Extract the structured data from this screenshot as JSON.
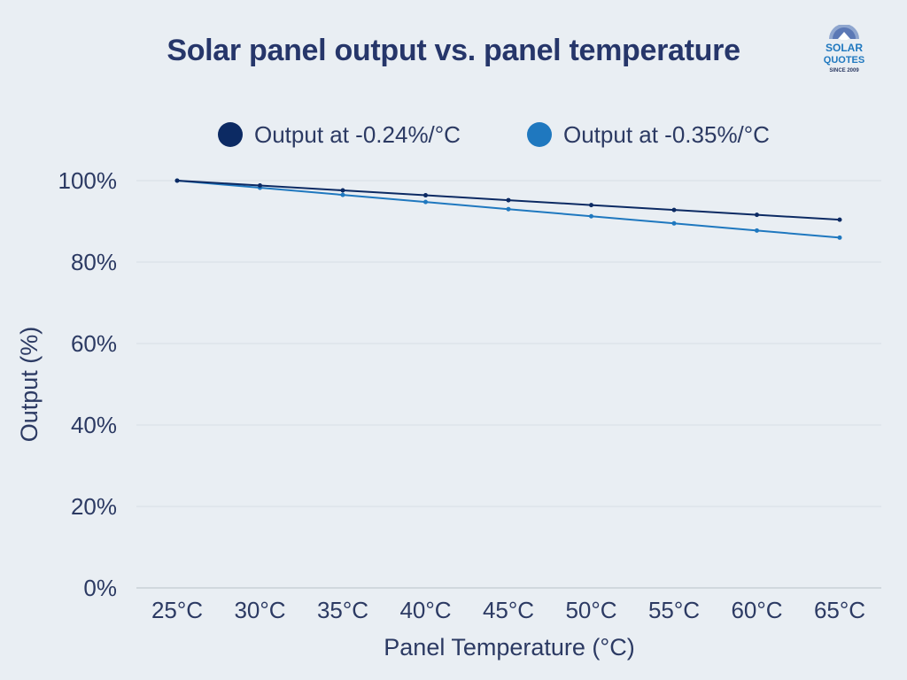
{
  "chart_data": {
    "type": "line",
    "title": "Solar panel output vs. panel temperature",
    "xlabel": "Panel Temperature (°C)",
    "ylabel": "Output (%)",
    "categories": [
      "25°C",
      "30°C",
      "35°C",
      "40°C",
      "45°C",
      "50°C",
      "55°C",
      "60°C",
      "65°C"
    ],
    "ylim": [
      0,
      100
    ],
    "yticks": [
      0,
      20,
      40,
      60,
      80,
      100
    ],
    "ytick_labels": [
      "0%",
      "20%",
      "40%",
      "60%",
      "80%",
      "100%"
    ],
    "grid": true,
    "legend_position": "top",
    "series": [
      {
        "name": "Output at -0.24%/°C",
        "color": "#0c2a63",
        "values": [
          100,
          98.8,
          97.6,
          96.4,
          95.2,
          94.0,
          92.8,
          91.6,
          90.4
        ]
      },
      {
        "name": "Output at -0.35%/°C",
        "color": "#1f78bf",
        "values": [
          100,
          98.25,
          96.5,
          94.75,
          93.0,
          91.25,
          89.5,
          87.75,
          86.0
        ]
      }
    ]
  },
  "logo": {
    "line1": "SOLAR",
    "line2": "QUOTES",
    "line3": "SINCE 2009",
    "color": "#1f78bf"
  }
}
